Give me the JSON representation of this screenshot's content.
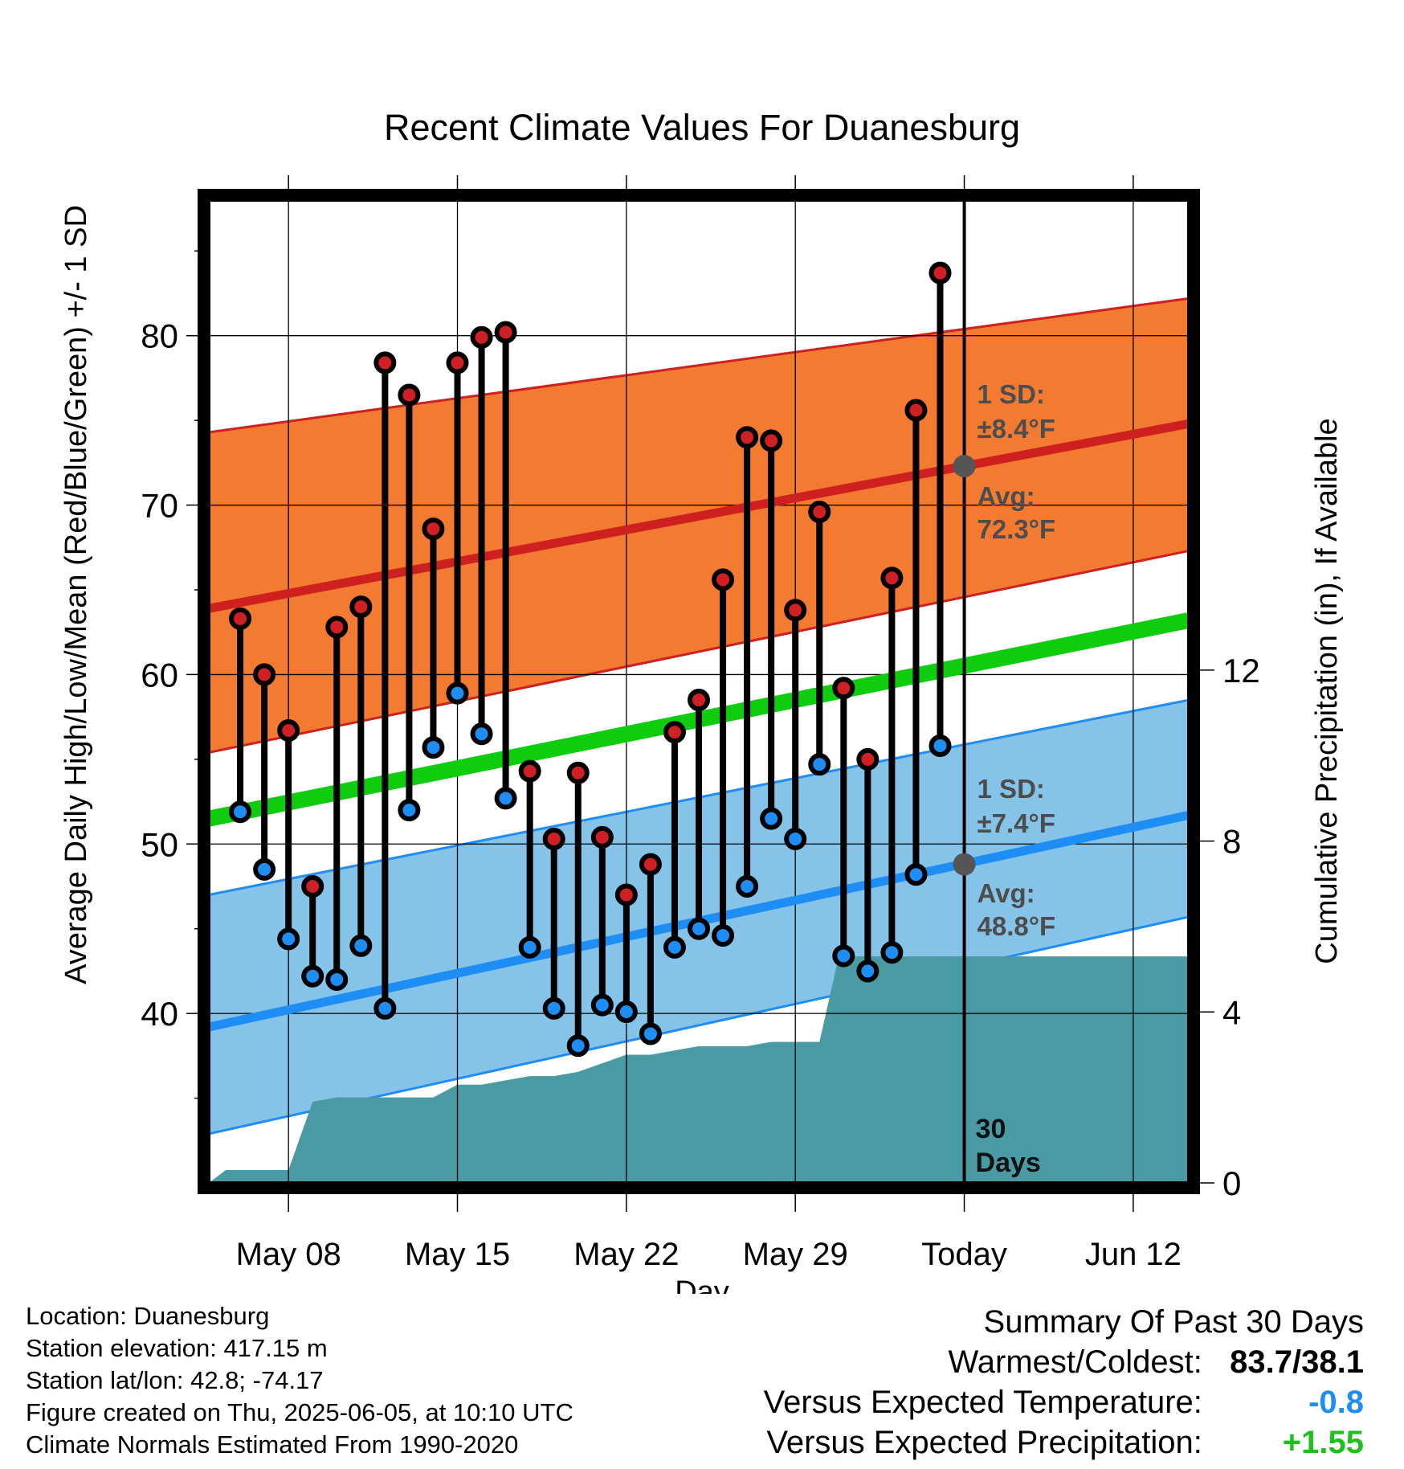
{
  "chart_data": {
    "type": "line",
    "title": "Recent Climate Values For Duanesburg",
    "xlabel": "Day",
    "ylabel": "Average Daily High/Low/Mean (Red/Blue/Green) +/- 1 SD",
    "y2label": "Cumulative Precipitation (in), If Available",
    "ylim": [
      30,
      88
    ],
    "y2lim": [
      0,
      23
    ],
    "xlim": [
      -3.3,
      37.3
    ],
    "x_ticks": [
      {
        "day": 0,
        "label": "May 08"
      },
      {
        "day": 7,
        "label": "May 15"
      },
      {
        "day": 14,
        "label": "May 22"
      },
      {
        "day": 21,
        "label": "May 29"
      },
      {
        "day": 28,
        "label": "Today"
      },
      {
        "day": 35,
        "label": "Jun 12"
      }
    ],
    "y_ticks": [
      40,
      50,
      60,
      70,
      80
    ],
    "y2_ticks": [
      0,
      4,
      8,
      12
    ],
    "grid": true,
    "days": [
      -2,
      -1,
      0,
      1,
      2,
      3,
      4,
      5,
      6,
      7,
      8,
      9,
      10,
      11,
      12,
      13,
      14,
      15,
      16,
      17,
      18,
      19,
      20,
      21,
      22,
      23,
      24,
      25,
      26,
      27
    ],
    "daily_high": [
      63.3,
      60.0,
      56.7,
      47.5,
      62.8,
      64.0,
      78.4,
      76.5,
      68.6,
      78.4,
      79.9,
      80.2,
      54.3,
      50.3,
      54.2,
      50.4,
      47.0,
      48.8,
      56.6,
      58.5,
      65.6,
      74.0,
      73.8,
      63.8,
      69.6,
      59.2,
      55.0,
      65.7,
      75.6,
      83.7
    ],
    "daily_low": [
      51.9,
      48.5,
      44.4,
      42.2,
      42.0,
      44.0,
      40.3,
      52.0,
      55.7,
      58.9,
      56.5,
      52.7,
      43.9,
      40.3,
      38.1,
      40.5,
      40.1,
      38.8,
      43.9,
      45.0,
      44.6,
      47.5,
      51.5,
      50.3,
      54.7,
      43.4,
      42.5,
      43.6,
      48.2,
      55.8
    ],
    "normals": {
      "x": [
        -3.3,
        37.3
      ],
      "avg_high": [
        63.9,
        74.8
      ],
      "high_sd_upper": [
        74.3,
        82.2
      ],
      "high_sd_lower": [
        55.4,
        67.3
      ],
      "avg_mean": [
        51.5,
        63.2
      ],
      "avg_low": [
        39.2,
        51.7
      ],
      "low_sd_upper": [
        47.0,
        58.5
      ],
      "low_sd_lower": [
        32.9,
        45.7
      ]
    },
    "precip": {
      "x": [
        -3.3,
        -2.6,
        -2.6,
        0,
        1,
        2,
        3,
        4,
        5,
        6,
        7,
        8,
        9,
        10,
        11,
        12,
        13,
        14,
        15,
        16,
        17,
        18,
        19,
        20,
        21,
        22,
        22.8,
        23.5,
        24,
        25,
        26,
        27,
        28,
        29,
        37.3
      ],
      "cum": [
        0,
        0.3,
        0.3,
        0.3,
        1.9,
        2.0,
        2.0,
        2.0,
        2.0,
        2.0,
        2.3,
        2.3,
        2.4,
        2.5,
        2.5,
        2.6,
        2.8,
        3.0,
        3.0,
        3.1,
        3.2,
        3.2,
        3.2,
        3.3,
        3.3,
        3.3,
        5.3,
        5.3,
        5.3,
        5.3,
        5.3,
        5.3,
        5.3,
        5.3,
        5.3
      ]
    },
    "annotations": {
      "high_sd_label": [
        "1 SD:",
        "±8.4°F"
      ],
      "high_avg_label": [
        "Avg:",
        "72.3°F"
      ],
      "low_sd_label": [
        "1 SD:",
        "±7.4°F"
      ],
      "low_avg_label": [
        "Avg:",
        "48.8°F"
      ],
      "today_label": [
        "30",
        "Days"
      ],
      "today_high_avg": 72.3,
      "today_low_avg": 48.8
    },
    "colors": {
      "high_band": "#f37a31",
      "high_line": "#cf2020",
      "low_band": "#86c3e8",
      "low_line": "#1e8ef5",
      "mean_line": "#0fcc0f",
      "precip": "#4a9aa4",
      "high_dot": "#cf2026",
      "low_dot": "#1e8ef5",
      "annotation": "#4d4d4d"
    }
  },
  "footer": {
    "location": "Location: Duanesburg",
    "elevation": "Station elevation: 417.15 m",
    "latlon": "Station lat/lon: 42.8; -74.17",
    "created": "Figure created on Thu, 2025-06-05, at 10:10 UTC",
    "normals": "Climate Normals Estimated From 1990-2020"
  },
  "summary": {
    "title": "Summary Of Past 30 Days",
    "warmest_label": "Warmest/Coldest:",
    "warmest_value": "83.7/38.1",
    "temp_label": "Versus Expected Temperature:",
    "temp_value": "-0.8",
    "temp_color": "#1e8ef5",
    "precip_label": "Versus Expected Precipitation:",
    "precip_value": "+1.55",
    "precip_color": "#1fbf1f"
  }
}
